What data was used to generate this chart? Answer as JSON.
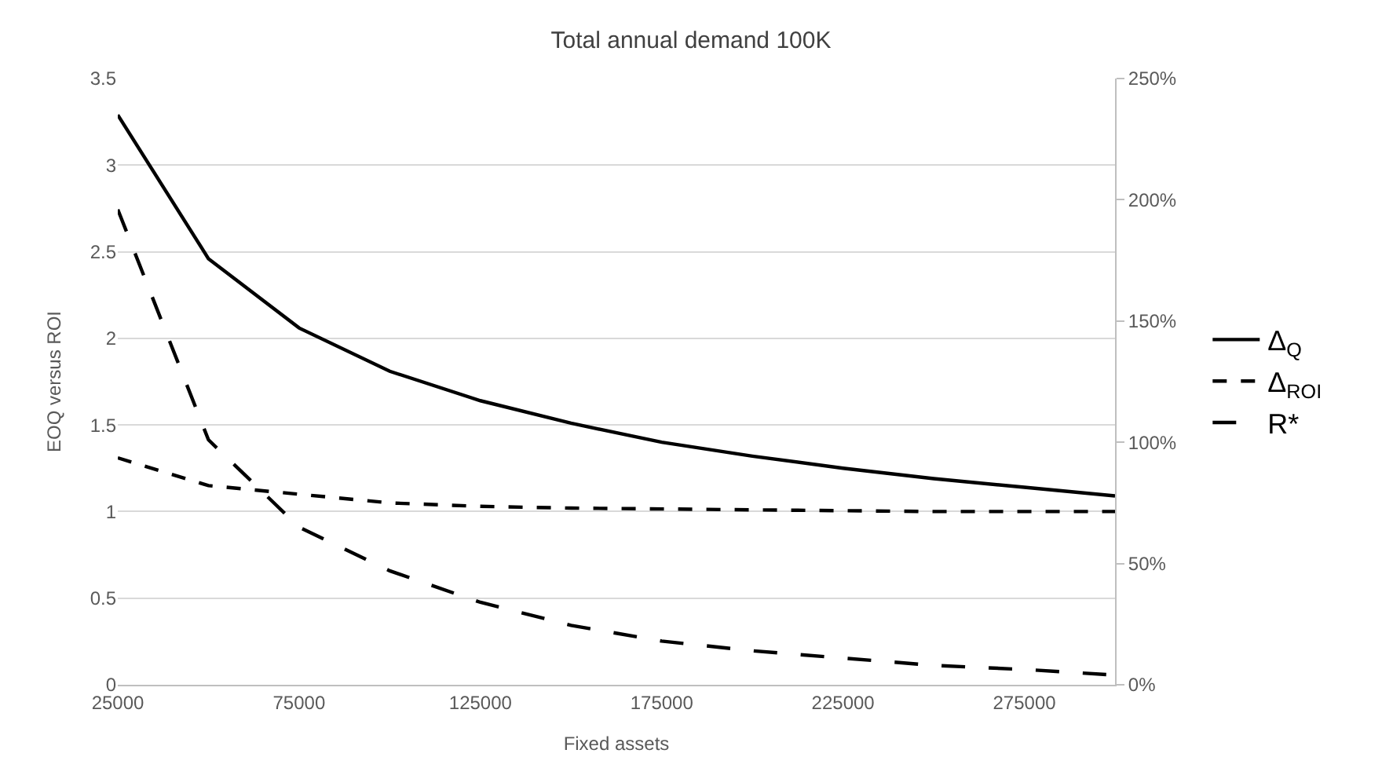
{
  "chart_data": {
    "type": "line",
    "title": "Total annual demand 100K",
    "xlabel": "Fixed assets",
    "ylabel": "EOQ versus ROI",
    "x": [
      25000,
      50000,
      75000,
      100000,
      125000,
      150000,
      175000,
      200000,
      225000,
      250000,
      275000,
      300000
    ],
    "series": [
      {
        "name": "Δ$_{Q}$",
        "color": "#000000",
        "line_style": "solid",
        "values": [
          3.29,
          2.46,
          2.06,
          1.81,
          1.64,
          1.51,
          1.4,
          1.32,
          1.25,
          1.19,
          1.14,
          1.09
        ]
      },
      {
        "name": "Δ$_{ROI}$",
        "color": "#000000",
        "line_style": "dotted",
        "values": [
          1.31,
          1.15,
          1.1,
          1.05,
          1.03,
          1.02,
          1.015,
          1.01,
          1.005,
          1.0,
          1.0,
          1.0
        ]
      },
      {
        "name": "R*",
        "color": "#000000",
        "line_style": "dashed",
        "axis": "y2",
        "values": [
          196,
          101,
          65,
          47,
          34,
          24.5,
          18,
          14,
          11,
          8,
          6.3,
          4
        ]
      }
    ],
    "xlim": [
      25000,
      300000
    ],
    "xticks": [
      25000,
      75000,
      125000,
      175000,
      225000,
      275000
    ],
    "ylim": [
      0,
      3.5
    ],
    "yticks": [
      0,
      0.5,
      1,
      1.5,
      2,
      2.5,
      3,
      3.5
    ],
    "y2lim": [
      0,
      250
    ],
    "y2ticks": [
      {
        "value": 0,
        "label": "0%"
      },
      {
        "value": 50,
        "label": "50%"
      },
      {
        "value": 100,
        "label": "100%"
      },
      {
        "value": 150,
        "label": "150%"
      },
      {
        "value": 200,
        "label": "200%"
      },
      {
        "value": 250,
        "label": "250%"
      }
    ],
    "grid": "y",
    "legend": "right"
  }
}
